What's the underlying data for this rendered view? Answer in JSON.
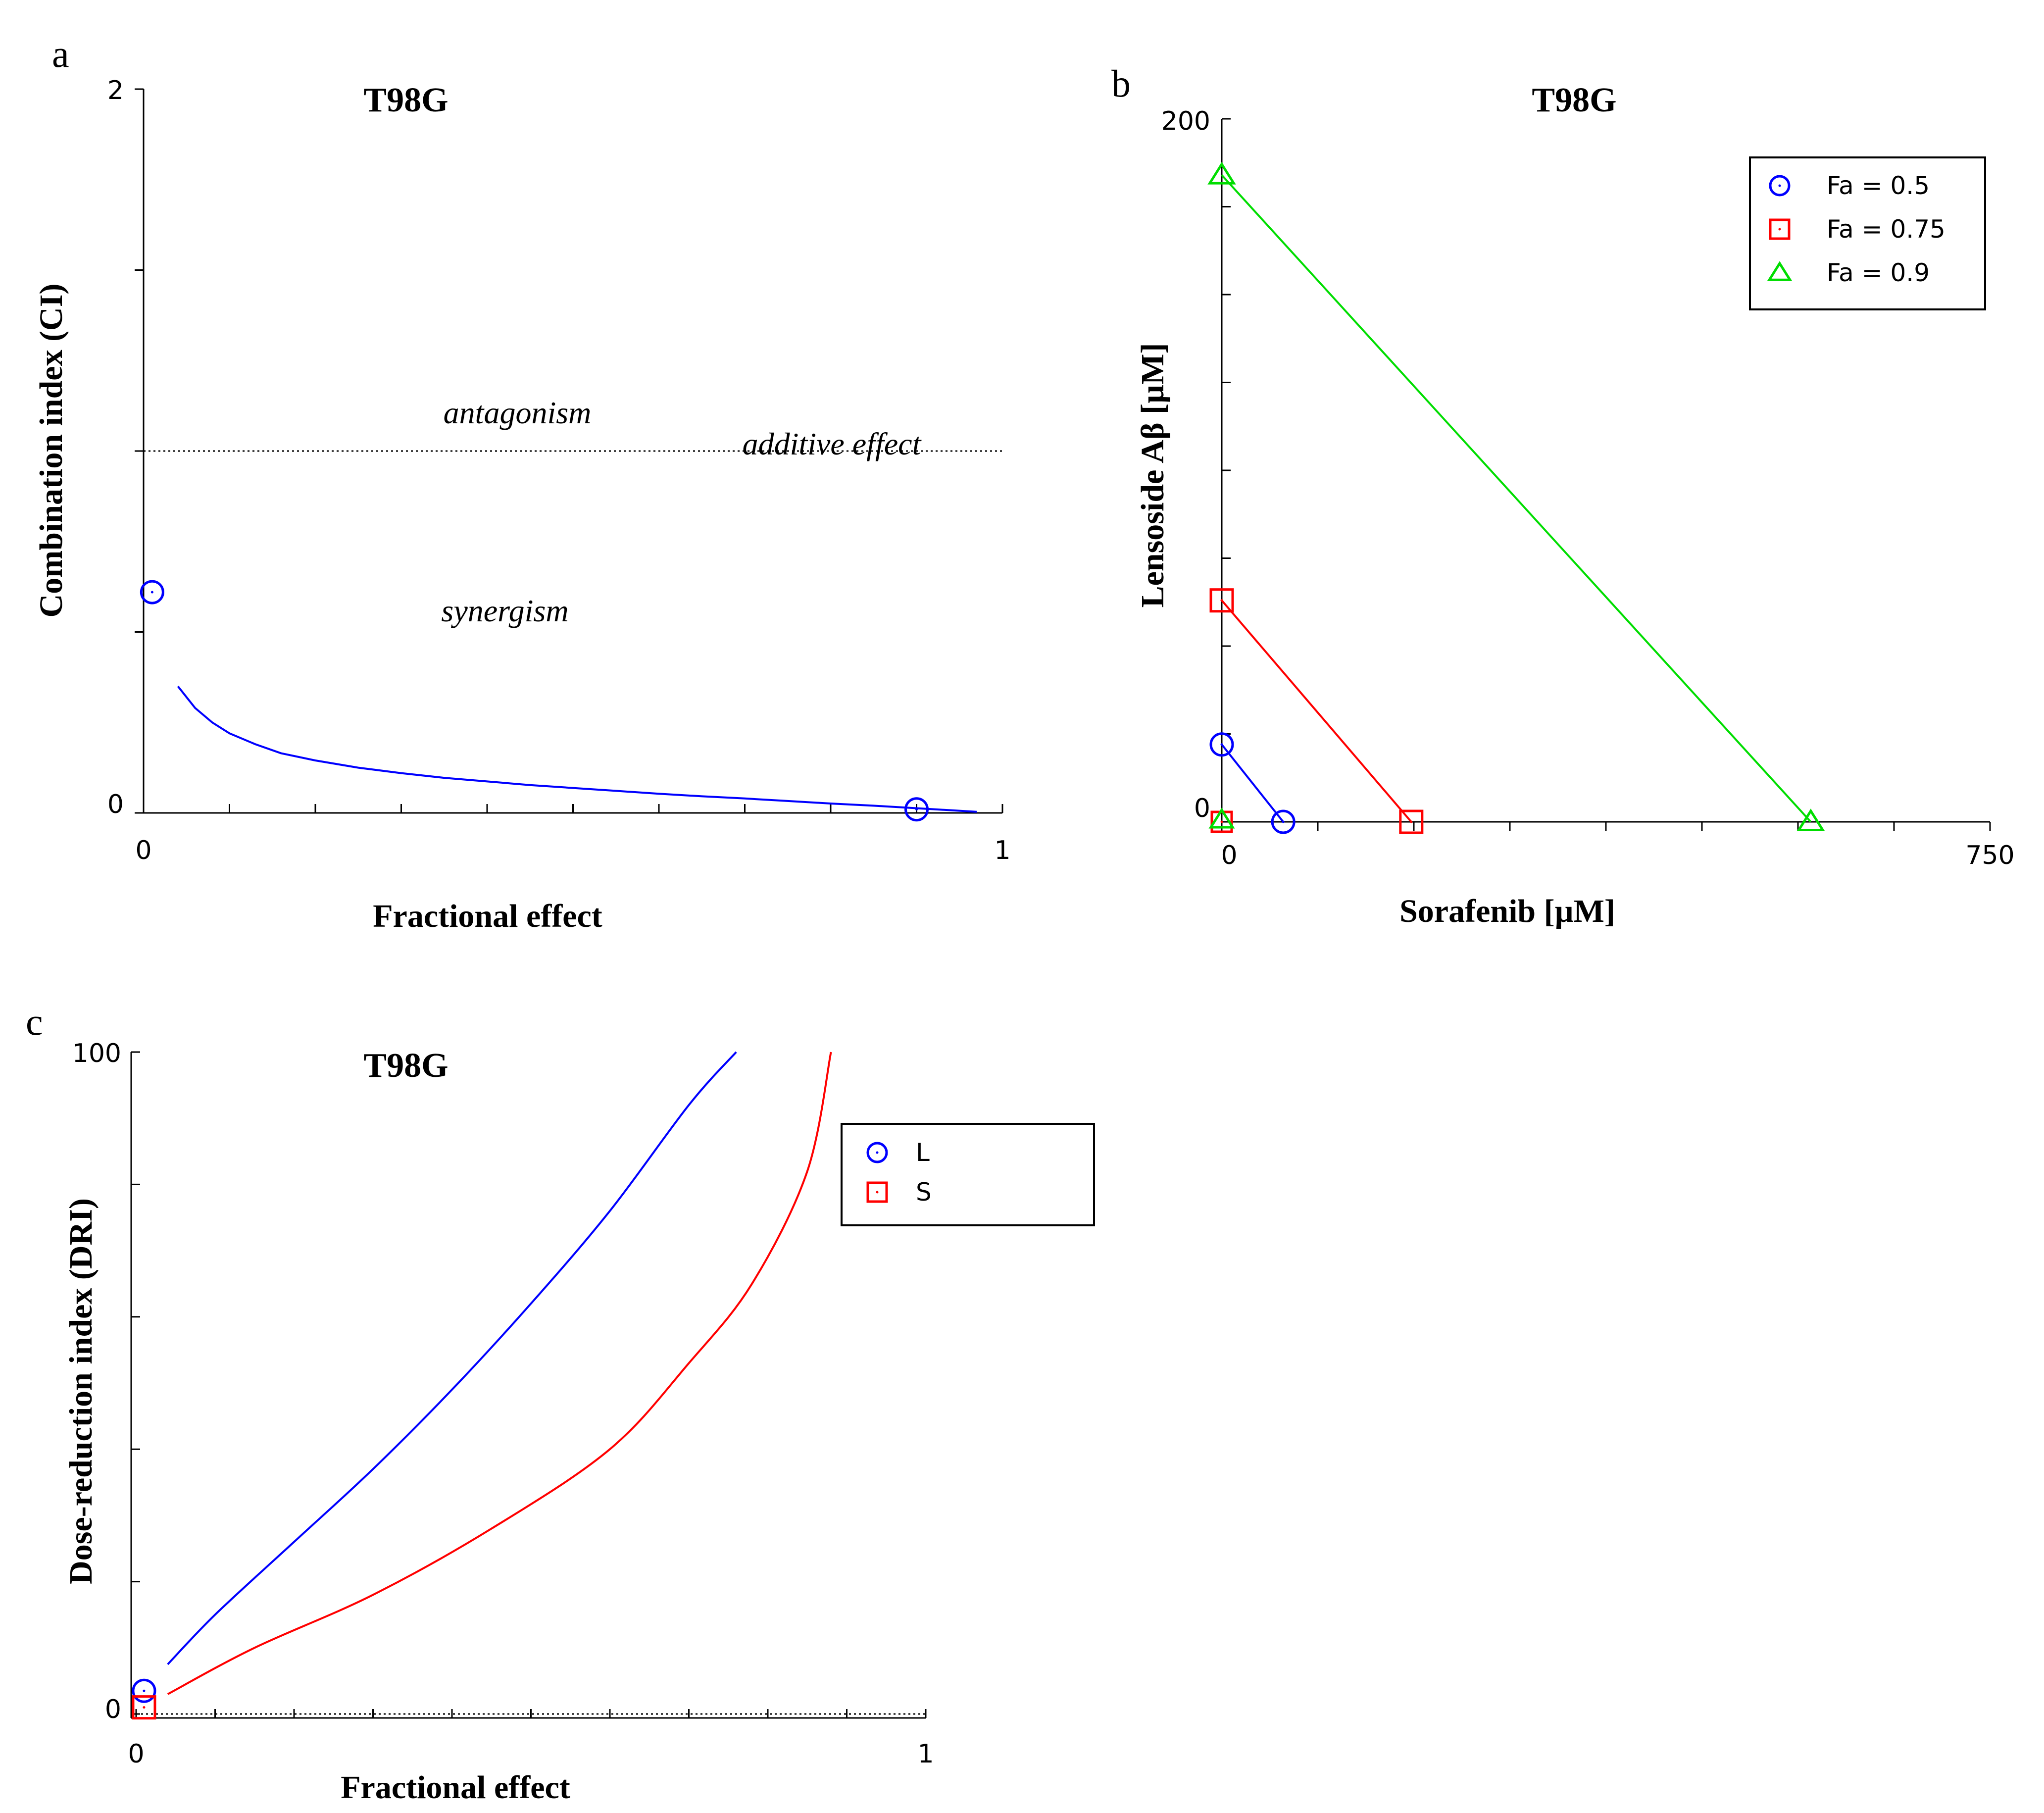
{
  "figure": {
    "panel_labels": [
      "a",
      "b",
      "c"
    ]
  },
  "chart_data": [
    {
      "id": "a",
      "type": "line",
      "title": "T98G",
      "xlabel": "Fractional effect",
      "ylabel": "Combination index (CI)",
      "xlim": [
        0,
        1
      ],
      "ylim": [
        0,
        2
      ],
      "x_tick_labels": [
        "0",
        "1"
      ],
      "y_tick_labels": [
        "0",
        "2"
      ],
      "reference_line": {
        "y": 1,
        "style": "dotted"
      },
      "annotations": {
        "antagonism": "antagonism",
        "additive": "additive effect",
        "synergism": "synergism"
      },
      "color": "#0000ff",
      "curve": {
        "x": [
          0.04,
          0.06,
          0.08,
          0.1,
          0.13,
          0.16,
          0.2,
          0.25,
          0.3,
          0.35,
          0.4,
          0.45,
          0.5,
          0.55,
          0.6,
          0.65,
          0.7,
          0.75,
          0.8,
          0.85,
          0.9,
          0.95,
          0.97
        ],
        "y": [
          0.35,
          0.29,
          0.25,
          0.22,
          0.19,
          0.165,
          0.145,
          0.125,
          0.11,
          0.097,
          0.087,
          0.077,
          0.069,
          0.061,
          0.053,
          0.046,
          0.04,
          0.033,
          0.026,
          0.02,
          0.013,
          0.006,
          0.003
        ]
      },
      "points": [
        {
          "x": 0.01,
          "y": 0.61
        },
        {
          "x": 0.9,
          "y": 0.01
        }
      ]
    },
    {
      "id": "b",
      "type": "scatter",
      "title": "T98G",
      "xlabel": "Sorafenib [µM]",
      "ylabel": "Lensoside Aβ [µM]",
      "xlim": [
        0,
        750
      ],
      "ylim": [
        0,
        200
      ],
      "x_tick_labels": [
        "0",
        "750"
      ],
      "y_tick_labels": [
        "0",
        "200"
      ],
      "legend_position": "top-right",
      "series": [
        {
          "name": "Fa = 0.5",
          "marker": "circle",
          "color": "#0000ff",
          "points": [
            {
              "x": 0,
              "y": 22
            },
            {
              "x": 60,
              "y": 0
            }
          ]
        },
        {
          "name": "Fa = 0.75",
          "marker": "square",
          "color": "#ff0000",
          "points": [
            {
              "x": 0,
              "y": 63
            },
            {
              "x": 185,
              "y": 0
            }
          ]
        },
        {
          "name": "Fa = 0.9",
          "marker": "triangle",
          "color": "#00dd00",
          "points": [
            {
              "x": 0,
              "y": 184
            },
            {
              "x": 575,
              "y": 0
            }
          ]
        }
      ]
    },
    {
      "id": "c",
      "type": "line",
      "title": "T98G",
      "xlabel": "Fractional effect",
      "ylabel": "Dose-reduction index (DRI)",
      "xlim": [
        0,
        1
      ],
      "ylim": [
        0,
        100
      ],
      "x_tick_labels": [
        "0",
        "1"
      ],
      "y_tick_labels": [
        "0",
        "100"
      ],
      "reference_line": {
        "y": 0,
        "style": "dotted"
      },
      "legend_position": "top-right",
      "series": [
        {
          "name": "L",
          "marker": "circle",
          "color": "#0000ff",
          "x": [
            0.04,
            0.1,
            0.2,
            0.3,
            0.4,
            0.5,
            0.6,
            0.7,
            0.76
          ],
          "y": [
            7.5,
            15,
            26,
            37,
            49,
            62,
            76,
            92,
            100
          ],
          "point": {
            "x": 0.01,
            "y": 3.5
          }
        },
        {
          "name": "S",
          "marker": "square",
          "color": "#ff0000",
          "x": [
            0.04,
            0.15,
            0.3,
            0.45,
            0.6,
            0.7,
            0.78,
            0.85,
            0.88
          ],
          "y": [
            3,
            10,
            18,
            28,
            40,
            53,
            65,
            82,
            100
          ],
          "point": {
            "x": 0.01,
            "y": 1
          }
        }
      ]
    }
  ]
}
